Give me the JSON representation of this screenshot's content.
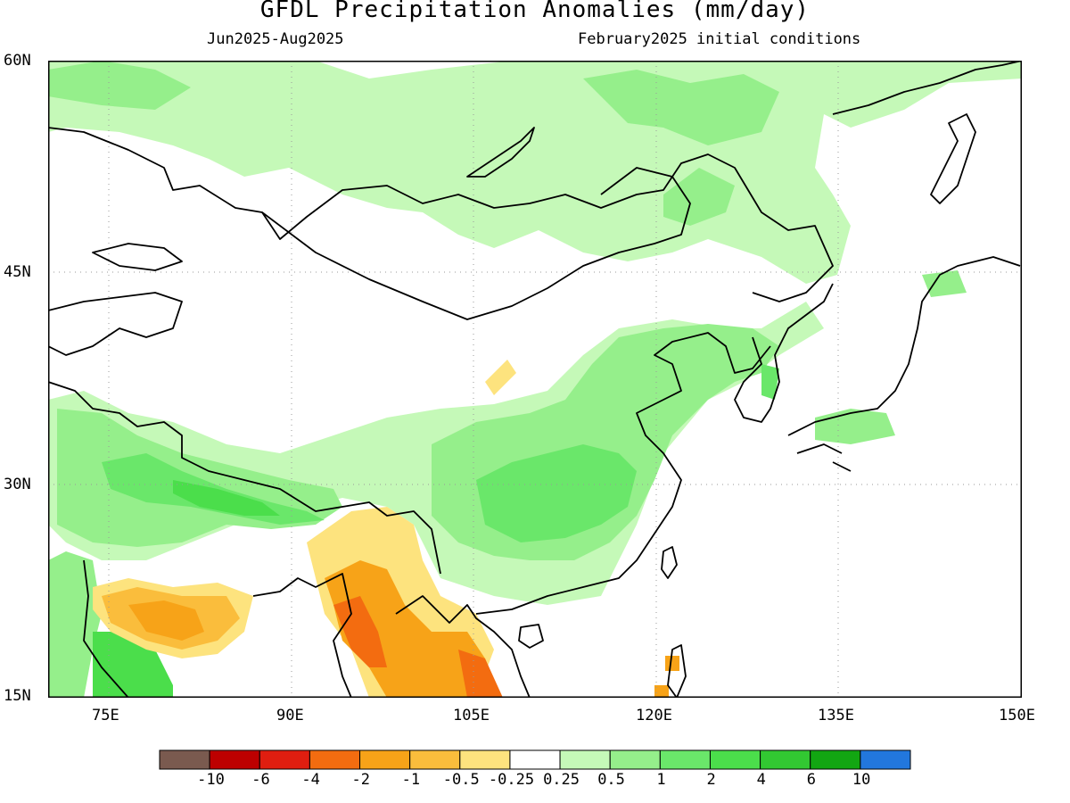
{
  "title": "GFDL Precipitation Anomalies (mm/day)",
  "subtitle_left": "Jun2025-Aug2025",
  "subtitle_right": "February2025 initial conditions",
  "lat_labels": [
    "60N",
    "45N",
    "30N",
    "15N"
  ],
  "lon_labels": [
    "75E",
    "90E",
    "105E",
    "120E",
    "135E",
    "150E"
  ],
  "colorbar": {
    "colors": [
      "#7a5a4f",
      "#bd0000",
      "#e01e10",
      "#f36c10",
      "#f7a318",
      "#fabd3c",
      "#fde37e",
      "#ffffff",
      "#c5f9b8",
      "#95ef8b",
      "#6ae76a",
      "#4bde4b",
      "#32c832",
      "#12a612",
      "#2277dd"
    ],
    "labels": [
      "-10",
      "-6",
      "-4",
      "-2",
      "-1",
      "-0.5",
      "-0.25",
      "0.25",
      "0.5",
      "1",
      "2",
      "4",
      "6",
      "10"
    ]
  },
  "colors": {
    "light_green": "#c5f9b8",
    "green": "#95ef8b",
    "mid_green": "#6ae76a",
    "bright_green": "#4bde4b",
    "yellow": "#fde37e",
    "light_orange": "#fabd3c",
    "orange": "#f7a318",
    "dark_orange": "#f36c10",
    "coast": "#000000"
  }
}
